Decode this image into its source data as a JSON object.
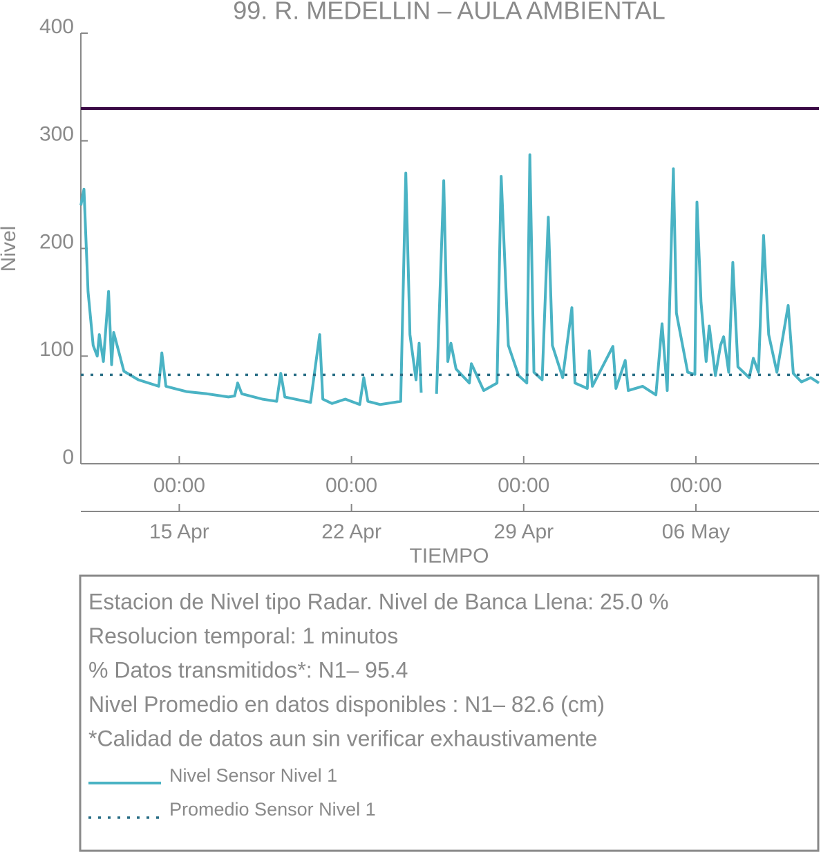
{
  "chart_data": {
    "type": "line",
    "title": "99. R. MEDELLIN – AULA AMBIENTAL",
    "y_label": "Nivel",
    "x_label": "TIEMPO",
    "xlim": [
      "04-11 00:00",
      "05-11 00:00"
    ],
    "ylim": [
      0,
      400
    ],
    "yticks": [
      0,
      100,
      200,
      300,
      400
    ],
    "xticks": [
      {
        "value": "04-15 00:00",
        "label": "00:00"
      },
      {
        "value": "04-22 00:00",
        "label": "00:00"
      },
      {
        "value": "04-29 00:00",
        "label": "00:00"
      },
      {
        "value": "05-06 00:00",
        "label": "00:00"
      }
    ],
    "xticks_secondary": [
      {
        "value": "04-15 00:00",
        "label": "15 Apr"
      },
      {
        "value": "04-22 00:00",
        "label": "22 Apr"
      },
      {
        "value": "04-29 00:00",
        "label": "29 Apr"
      },
      {
        "value": "05-06 00:00",
        "label": "06 May"
      }
    ],
    "x": [
      "04-11 00:00",
      "04-11 03:00",
      "04-11 07:00",
      "04-11 12:00",
      "04-11 16:00",
      "04-11 18:00",
      "04-11 22:00",
      "04-12 03:00",
      "04-12 06:00",
      "04-12 08:00",
      "04-12 18:00",
      "04-13 08:00",
      "04-14 04:00",
      "04-14 07:00",
      "04-14 11:00",
      "04-15 07:00",
      "04-16 03:00",
      "04-17 00:00",
      "04-17 06:00",
      "04-17 09:00",
      "04-17 13:00",
      "04-18 09:00",
      "04-18 23:00",
      "04-19 03:00",
      "04-19 07:00",
      "04-20 08:00",
      "04-20 17:00",
      "04-20 20:00",
      "04-21 05:00",
      "04-21 18:00",
      "04-22 08:00",
      "04-22 12:00",
      "04-22 16:00",
      "04-23 04:00",
      "04-24 00:00",
      "04-24 05:00",
      "04-24 09:00",
      "04-24 15:00",
      "04-24 18:00",
      "04-24 20:00",
      "04-25 04:00",
      "04-25 11:00",
      "04-25 18:00",
      "04-25 22:00",
      "04-26 01:00",
      "04-26 06:00",
      "04-26 19:00",
      "04-26 21:00",
      "04-27 09:00",
      "04-27 22:00",
      "04-28 02:00",
      "04-28 09:00",
      "04-28 19:00",
      "04-29 03:00",
      "04-29 06:00",
      "04-29 10:00",
      "04-29 18:00",
      "04-30 00:00",
      "04-30 04:00",
      "04-30 14:00",
      "04-30 23:00",
      "05-01 02:00",
      "05-01 14:00",
      "05-01 16:00",
      "05-01 19:00",
      "05-02 15:00",
      "05-02 18:00",
      "05-03 03:00",
      "05-03 06:00",
      "05-03 20:00",
      "05-04 09:00",
      "05-04 15:00",
      "05-04 20:00",
      "05-05 02:00",
      "05-05 05:00",
      "05-05 16:00",
      "05-05 23:00",
      "05-06 01:00",
      "05-06 05:00",
      "05-06 10:00",
      "05-06 13:00",
      "05-06 19:00",
      "05-07 00:00",
      "05-07 03:00",
      "05-07 08:00",
      "05-07 12:00",
      "05-07 17:00",
      "05-08 04:00",
      "05-08 08:00",
      "05-08 13:00",
      "05-08 18:00",
      "05-08 23:00",
      "05-09 07:00",
      "05-09 18:00",
      "05-09 23:00",
      "05-10 07:00",
      "05-10 16:00",
      "05-11 00:00"
    ],
    "series": [
      {
        "name": "Nivel Sensor Nivel 1",
        "color": "#4ab3c4",
        "values": [
          240,
          255,
          160,
          110,
          100,
          120,
          95,
          160,
          92,
          122,
          86,
          78,
          72,
          103,
          72,
          67,
          65,
          62,
          63,
          75,
          65,
          60,
          58,
          84,
          62,
          57,
          120,
          60,
          56,
          60,
          55,
          80,
          58,
          55,
          58,
          270,
          120,
          78,
          112,
          66,
          null,
          65,
          263,
          95,
          112,
          88,
          75,
          93,
          68,
          75,
          267,
          110,
          82,
          75,
          287,
          85,
          78,
          229,
          110,
          80,
          145,
          75,
          70,
          105,
          72,
          109,
          70,
          96,
          68,
          72,
          64,
          130,
          68,
          274,
          140,
          85,
          83,
          243,
          150,
          95,
          128,
          82,
          110,
          118,
          85,
          187,
          90,
          80,
          98,
          85,
          212,
          120,
          85,
          147,
          84,
          76,
          80,
          75
        ]
      }
    ],
    "mean_line": {
      "name": "Promedio Sensor Nivel 1",
      "color": "#2a6f86",
      "value": 82.6
    },
    "reference_line": {
      "value": 330,
      "color": "#3a0a45"
    },
    "info": [
      "Estacion de Nivel tipo Radar. Nivel de Banca Llena: 25.0 %",
      "Resolucion temporal: 1 minutos",
      "% Datos transmitidos*: N1– 95.4",
      "Nivel Promedio en datos disponibles : N1– 82.6 (cm)",
      "*Calidad de datos aun sin verificar exhaustivamente"
    ]
  }
}
